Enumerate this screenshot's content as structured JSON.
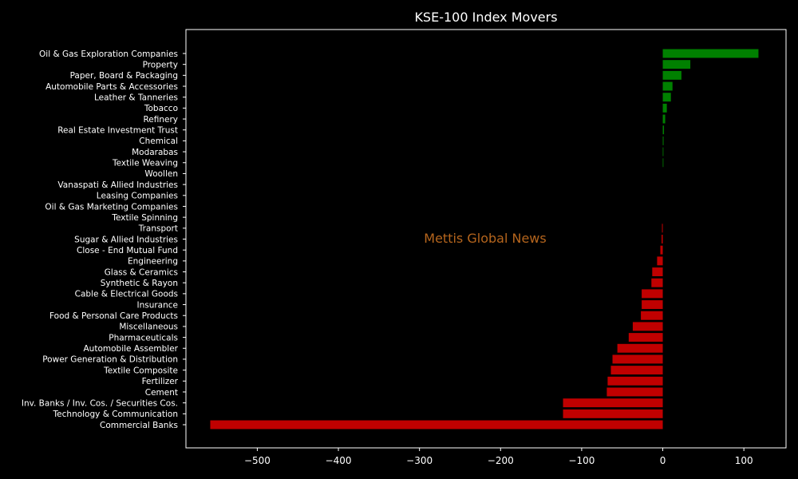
{
  "chart_data": {
    "type": "bar",
    "orientation": "horizontal",
    "title": "KSE-100 Index Movers",
    "xlabel": "",
    "ylabel": "",
    "xlim": [
      -588,
      152
    ],
    "x_ticks": [
      -500,
      -400,
      -300,
      -200,
      -100,
      0,
      100
    ],
    "x_tick_labels": [
      "−500",
      "−400",
      "−300",
      "−200",
      "−100",
      "0",
      "100"
    ],
    "grid": false,
    "watermark": "Mettis Global News",
    "colors": {
      "positive": "#008000",
      "negative": "#c00000",
      "background": "#000000",
      "text": "#ffffff"
    },
    "categories": [
      "Oil & Gas Exploration Companies",
      "Property",
      "Paper, Board & Packaging",
      "Automobile Parts & Accessories",
      "Leather & Tanneries",
      "Tobacco",
      "Refinery",
      "Real Estate Investment Trust",
      "Chemical",
      "Modarabas",
      "Textile Weaving",
      "Woollen",
      "Vanaspati & Allied Industries",
      "Leasing Companies",
      "Oil & Gas Marketing Companies",
      "Textile Spinning",
      "Transport",
      "Sugar & Allied Industries",
      "Close - End Mutual Fund",
      "Engineering",
      "Glass & Ceramics",
      "Synthetic & Rayon",
      "Cable & Electrical Goods",
      "Insurance",
      "Food & Personal Care Products",
      "Miscellaneous",
      "Pharmaceuticals",
      "Automobile Assembler",
      "Power Generation & Distribution",
      "Textile Composite",
      "Fertilizer",
      "Cement",
      "Inv. Banks / Inv. Cos. / Securities Cos.",
      "Technology & Communication",
      "Commercial Banks"
    ],
    "values": [
      118,
      34,
      23,
      12,
      10,
      5,
      3,
      1.5,
      1,
      0.8,
      0.6,
      0,
      0,
      0,
      0,
      0,
      -1,
      -1.5,
      -3,
      -7,
      -13,
      -14,
      -26,
      -26,
      -27,
      -37,
      -42,
      -56,
      -62,
      -64,
      -68,
      -69,
      -123,
      -123,
      -558
    ]
  }
}
